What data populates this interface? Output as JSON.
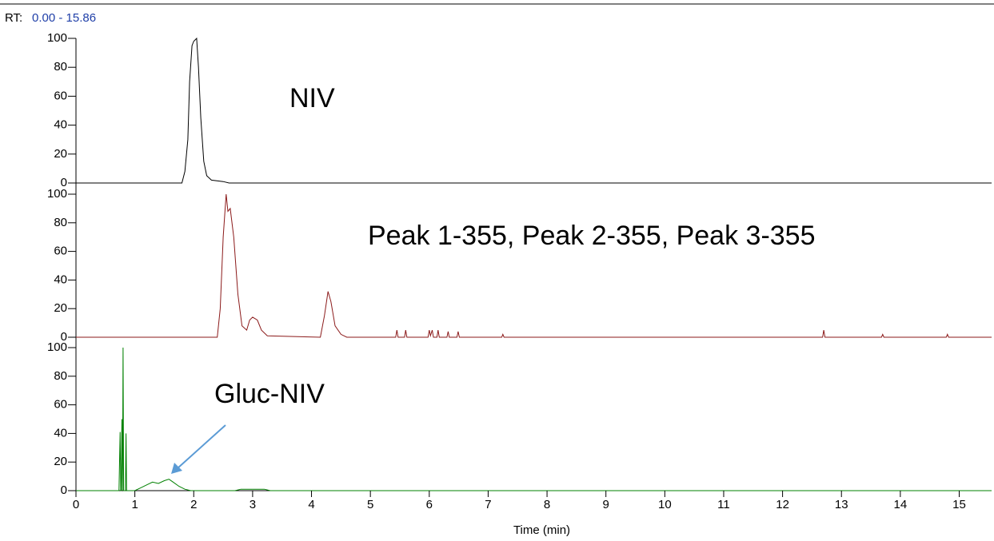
{
  "header": {
    "label": "RT:",
    "range": "0.00 - 15.86"
  },
  "chart_data": [
    {
      "type": "line",
      "annotation": "NIV",
      "color": "#000000",
      "x": [
        0,
        1.8,
        1.85,
        1.9,
        1.93,
        1.97,
        2.0,
        2.05,
        2.08,
        2.12,
        2.17,
        2.22,
        2.3,
        2.5,
        2.6,
        15.55
      ],
      "values": [
        0,
        0,
        8,
        30,
        70,
        95,
        98,
        100,
        80,
        45,
        15,
        5,
        2,
        1,
        0,
        0
      ],
      "ylim": [
        0,
        100
      ],
      "yticks": [
        0,
        20,
        40,
        60,
        80,
        100
      ]
    },
    {
      "type": "line",
      "annotation": "Peak 1-355, Peak 2-355, Peak 3-355",
      "color": "#8b1a1a",
      "x": [
        0,
        2.4,
        2.45,
        2.5,
        2.55,
        2.58,
        2.62,
        2.68,
        2.75,
        2.82,
        2.9,
        2.95,
        3.0,
        3.08,
        3.15,
        3.25,
        4.15,
        4.22,
        4.28,
        4.33,
        4.4,
        4.5,
        4.6,
        5.43,
        5.45,
        5.47,
        5.58,
        5.6,
        5.62,
        5.98,
        6.0,
        6.02,
        6.05,
        6.07,
        6.13,
        6.15,
        6.17,
        6.3,
        6.32,
        6.34,
        6.47,
        6.49,
        6.51,
        7.23,
        7.25,
        7.27,
        12.68,
        12.7,
        12.72,
        13.68,
        13.7,
        13.72,
        14.78,
        14.8,
        14.82,
        15.55
      ],
      "values": [
        0,
        0,
        20,
        70,
        100,
        88,
        90,
        70,
        30,
        8,
        5,
        12,
        14,
        12,
        5,
        1,
        0,
        15,
        32,
        25,
        8,
        2,
        0,
        0,
        5,
        0,
        0,
        5,
        0,
        0,
        5,
        1,
        5,
        0,
        0,
        5,
        0,
        0,
        4,
        0,
        0,
        4,
        0,
        0,
        2,
        0,
        0,
        5,
        0,
        0,
        2,
        0,
        0,
        2,
        0,
        0
      ],
      "ylim": [
        0,
        100
      ],
      "yticks": [
        0,
        20,
        40,
        60,
        80,
        100
      ]
    },
    {
      "type": "line",
      "annotation": "Gluc-NIV",
      "color": "#008000",
      "x": [
        0,
        0.73,
        0.75,
        0.76,
        0.77,
        0.78,
        0.79,
        0.8,
        0.81,
        0.84,
        0.85,
        0.86,
        1.0,
        1.1,
        1.2,
        1.3,
        1.4,
        1.5,
        1.58,
        1.65,
        1.75,
        1.85,
        1.95,
        2.7,
        2.8,
        3.0,
        3.2,
        3.3,
        15.55
      ],
      "values": [
        0,
        0,
        41,
        0,
        0,
        50,
        0,
        100,
        0,
        0,
        40,
        0,
        0,
        2,
        4,
        6,
        5,
        7,
        8,
        6,
        3,
        1,
        0,
        0,
        1,
        1,
        1,
        0,
        0
      ],
      "ylim": [
        0,
        100
      ],
      "yticks": [
        0,
        20,
        40,
        60,
        80,
        100
      ],
      "xlim": [
        0,
        15.55
      ],
      "xticks": [
        0,
        1,
        2,
        3,
        4,
        5,
        6,
        7,
        8,
        9,
        10,
        11,
        12,
        13,
        14,
        15
      ],
      "xlabel": "Time (min)"
    }
  ]
}
